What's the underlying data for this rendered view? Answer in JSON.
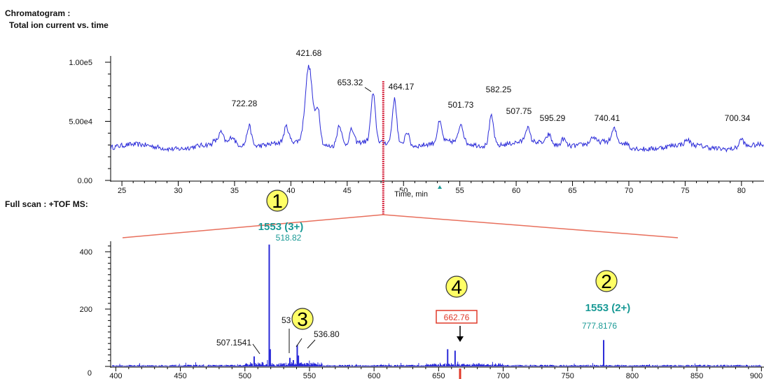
{
  "headers": {
    "chromatogram_title": "Chromatogram :",
    "chromatogram_subtitle": "Total ion current vs. time",
    "fullscan_title": "Full scan : +TOF MS:"
  },
  "chart_data": [
    {
      "type": "line",
      "title": "Chromatogram : Total ion current vs. time",
      "xlabel": "Time, min",
      "ylabel": "",
      "xlim": [
        24,
        82
      ],
      "ylim": [
        0,
        110000
      ],
      "x_ticks": [
        25,
        30,
        35,
        40,
        45,
        50,
        55,
        60,
        65,
        70,
        75,
        80
      ],
      "y_ticks": [
        {
          "value": 0,
          "label": "0.00"
        },
        {
          "value": 50000,
          "label": "5.00e4"
        },
        {
          "value": 100000,
          "label": "1.00e5"
        }
      ],
      "series_color": "#2a2ad8",
      "baseline": 30000,
      "peaks": [
        {
          "x": 33.8,
          "y": 38000,
          "label": ""
        },
        {
          "x": 34.8,
          "y": 36000,
          "label": ""
        },
        {
          "x": 36.3,
          "y": 47000,
          "label": "722.28"
        },
        {
          "x": 39.6,
          "y": 43000,
          "label": ""
        },
        {
          "x": 41.6,
          "y": 95000,
          "label": "421.68"
        },
        {
          "x": 42.4,
          "y": 60000,
          "label": ""
        },
        {
          "x": 44.3,
          "y": 48000,
          "label": ""
        },
        {
          "x": 45.4,
          "y": 42000,
          "label": ""
        },
        {
          "x": 47.3,
          "y": 70000,
          "label": "653.32"
        },
        {
          "x": 49.2,
          "y": 68000,
          "label": "464.17"
        },
        {
          "x": 50.3,
          "y": 42000,
          "label": ""
        },
        {
          "x": 53.2,
          "y": 47000,
          "label": "501.73"
        },
        {
          "x": 55.1,
          "y": 46000,
          "label": ""
        },
        {
          "x": 57.8,
          "y": 55000,
          "label": "582.25"
        },
        {
          "x": 61.0,
          "y": 42000,
          "label": "507.75"
        },
        {
          "x": 62.9,
          "y": 38000,
          "label": "595.29"
        },
        {
          "x": 64.2,
          "y": 36000,
          "label": ""
        },
        {
          "x": 66.8,
          "y": 35000,
          "label": ""
        },
        {
          "x": 68.7,
          "y": 41000,
          "label": "740.41"
        },
        {
          "x": 75.2,
          "y": 34000,
          "label": ""
        },
        {
          "x": 80.0,
          "y": 37000,
          "label": "700.34"
        }
      ],
      "cursor_x": 48.2
    },
    {
      "type": "bar",
      "title": "Full scan : +TOF MS:",
      "xlabel": "",
      "ylabel": "",
      "xlim": [
        396,
        902
      ],
      "ylim": [
        0,
        440
      ],
      "x_ticks": [
        400,
        450,
        500,
        550,
        600,
        650,
        700,
        750,
        800,
        850,
        900
      ],
      "y_ticks": [
        0,
        200,
        400
      ],
      "series_color": "#2a2ad8",
      "peaks": [
        {
          "x": 507.15,
          "y": 35,
          "label": "507.1541"
        },
        {
          "x": 513.5,
          "y": 15,
          "label": ""
        },
        {
          "x": 518.82,
          "y": 425,
          "label": "518.82"
        },
        {
          "x": 519.6,
          "y": 60,
          "label": ""
        },
        {
          "x": 534.8,
          "y": 30,
          "label": ""
        },
        {
          "x": 537.5,
          "y": 22,
          "label": ""
        },
        {
          "x": 540.5,
          "y": 75,
          "label": ""
        },
        {
          "x": 541.4,
          "y": 38,
          "label": ""
        },
        {
          "x": 548.0,
          "y": 12,
          "label": ""
        },
        {
          "x": 657.0,
          "y": 60,
          "label": ""
        },
        {
          "x": 662.76,
          "y": 55,
          "label": ""
        },
        {
          "x": 777.82,
          "y": 92,
          "label": "777.8176"
        }
      ],
      "annotations": [
        {
          "id": "1",
          "ion": "1553 (3+)",
          "mz_label": "518.82"
        },
        {
          "id": "2",
          "ion": "1553 (2+)",
          "mz_label": "777.8176"
        },
        {
          "id": "3",
          "fragment_left": "53",
          "label_right": "536.80"
        },
        {
          "id": "4",
          "boxed_label": "662.76"
        }
      ],
      "label_color": "#1a9a96",
      "highlight_color": "#e03a2a",
      "badge_color": "#ffff66"
    }
  ]
}
